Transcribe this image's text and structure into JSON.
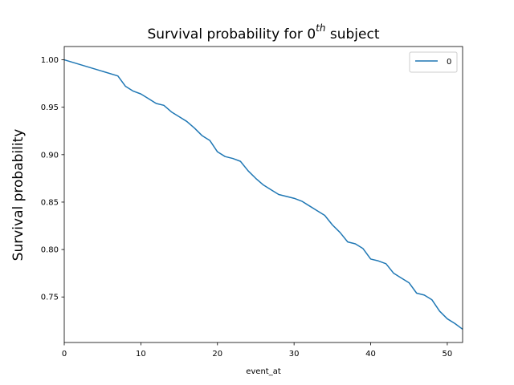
{
  "chart_data": {
    "type": "line",
    "title_main": "Survival probability for 0",
    "title_sup": "th",
    "title_tail": " subject",
    "xlabel": "event_at",
    "ylabel": "Survival probability",
    "xlim": [
      0,
      52
    ],
    "ylim": [
      0.702,
      1.014
    ],
    "xticks": [
      0,
      10,
      20,
      30,
      40,
      50
    ],
    "xtick_labels": [
      "0",
      "10",
      "20",
      "30",
      "40",
      "50"
    ],
    "yticks": [
      0.75,
      0.8,
      0.85,
      0.9,
      0.95,
      1.0
    ],
    "ytick_labels": [
      "0.75",
      "0.80",
      "0.85",
      "0.90",
      "0.95",
      "1.00"
    ],
    "grid": false,
    "legend_position": "upper right",
    "series": [
      {
        "name": "0",
        "color": "#1f77b4",
        "x": [
          0,
          7,
          8,
          9,
          10,
          11,
          12,
          13,
          14,
          15,
          16,
          17,
          18,
          19,
          20,
          21,
          22,
          23,
          24,
          25,
          26,
          27,
          28,
          29,
          30,
          31,
          32,
          33,
          34,
          35,
          36,
          37,
          38,
          39,
          40,
          41,
          42,
          43,
          44,
          45,
          46,
          47,
          48,
          49,
          50,
          51,
          52
        ],
        "y": [
          1.0,
          0.983,
          0.972,
          0.967,
          0.964,
          0.959,
          0.954,
          0.952,
          0.945,
          0.94,
          0.935,
          0.928,
          0.92,
          0.915,
          0.903,
          0.898,
          0.896,
          0.893,
          0.883,
          0.875,
          0.868,
          0.863,
          0.858,
          0.856,
          0.854,
          0.851,
          0.846,
          0.841,
          0.836,
          0.826,
          0.818,
          0.808,
          0.806,
          0.801,
          0.79,
          0.788,
          0.785,
          0.775,
          0.77,
          0.765,
          0.754,
          0.752,
          0.747,
          0.735,
          0.727,
          0.722,
          0.716
        ]
      }
    ]
  }
}
